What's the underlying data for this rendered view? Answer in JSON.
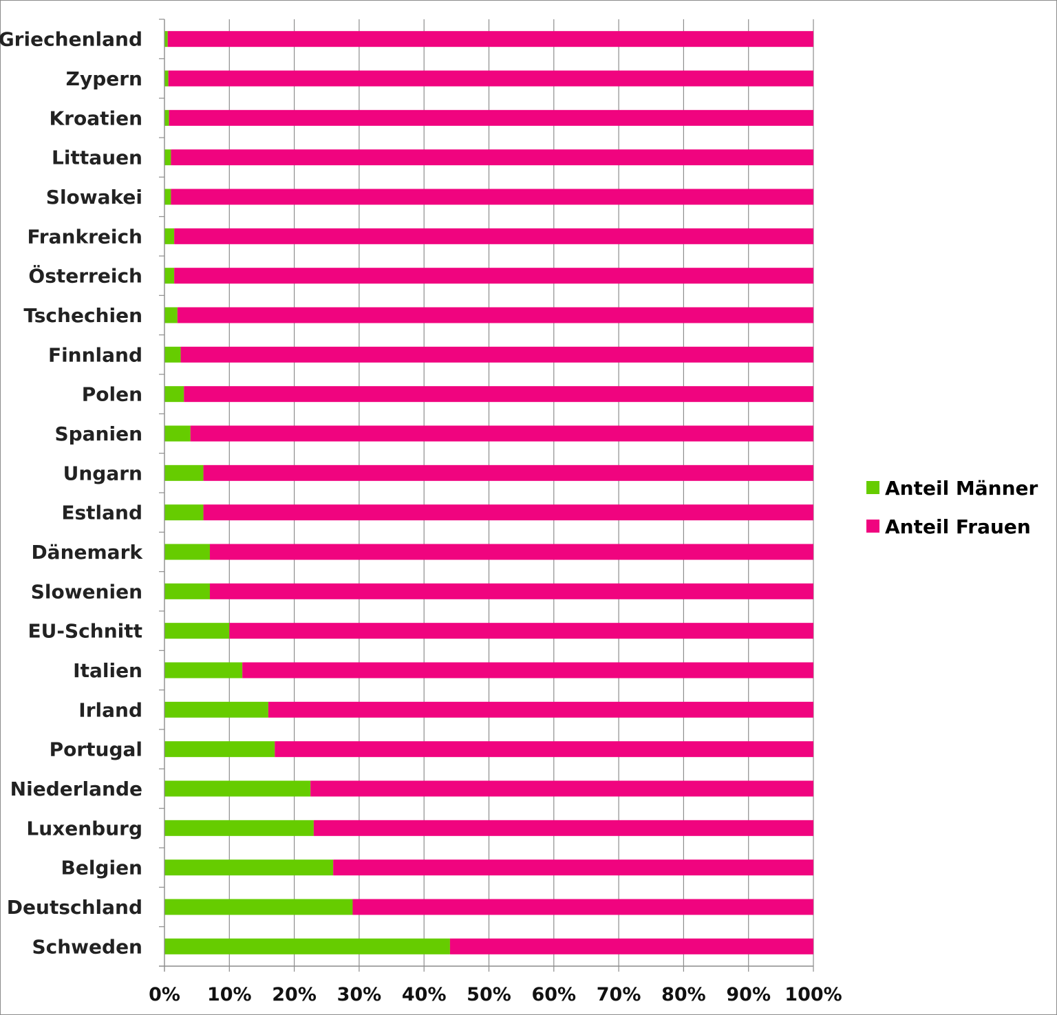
{
  "chart_data": {
    "type": "bar",
    "orientation": "horizontal",
    "stacked": "percent",
    "title": "",
    "xlabel": "",
    "ylabel": "",
    "xlim": [
      0,
      100
    ],
    "grid": true,
    "legend_position": "right",
    "x_ticks": [
      "0%",
      "10%",
      "20%",
      "30%",
      "40%",
      "50%",
      "60%",
      "70%",
      "80%",
      "90%",
      "100%"
    ],
    "categories": [
      "Griechenland",
      "Zypern",
      "Kroatien",
      "Littauen",
      "Slowakei",
      "Frankreich",
      "Österreich",
      "Tschechien",
      "Finnland",
      "Polen",
      "Spanien",
      "Ungarn",
      "Estland",
      "Dänemark",
      "Slowenien",
      "EU-Schnitt",
      "Italien",
      "Irland",
      "Portugal",
      "Niederlande",
      "Luxenburg",
      "Belgien",
      "Deutschland",
      "Schweden"
    ],
    "series": [
      {
        "name": "Anteil Männer",
        "color": "#66cc00",
        "values": [
          0.5,
          0.6,
          0.7,
          1.0,
          1.0,
          1.5,
          1.5,
          2.0,
          2.5,
          3.0,
          4.0,
          6.0,
          6.0,
          7.0,
          7.0,
          10.0,
          12.0,
          16.0,
          17.0,
          22.5,
          23.0,
          26.0,
          29.0,
          44.0
        ]
      },
      {
        "name": "Anteil Frauen",
        "color": "#f0047f",
        "values": [
          99.5,
          99.4,
          99.3,
          99.0,
          99.0,
          98.5,
          98.5,
          98.0,
          97.5,
          97.0,
          96.0,
          94.0,
          94.0,
          93.0,
          93.0,
          90.0,
          88.0,
          84.0,
          83.0,
          77.5,
          77.0,
          74.0,
          71.0,
          56.0
        ]
      }
    ]
  }
}
